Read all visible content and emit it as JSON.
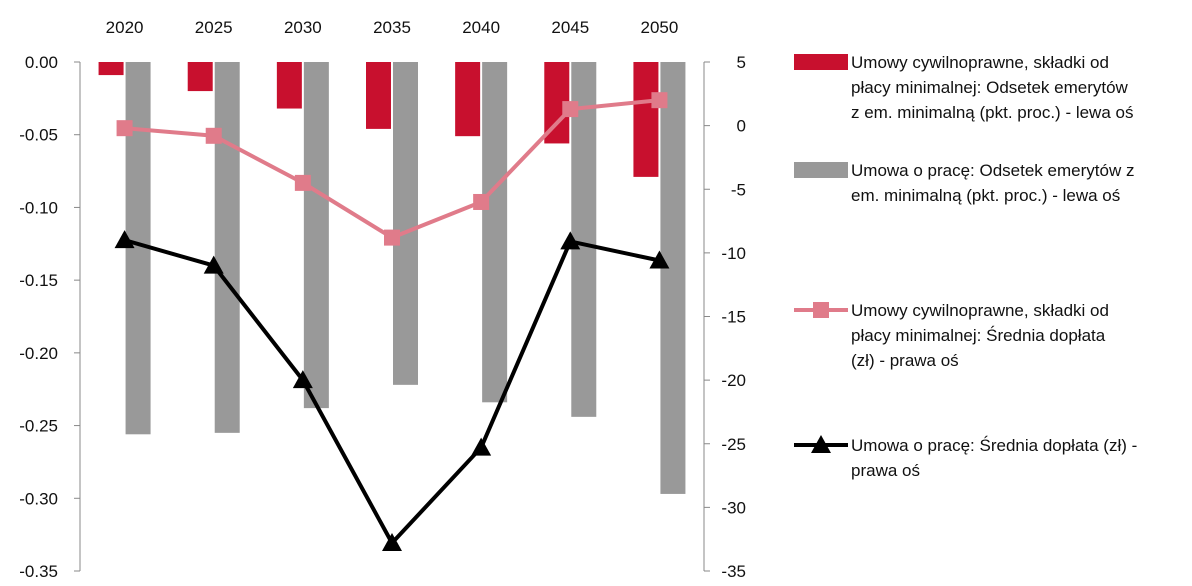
{
  "chart_data": {
    "type": "bar",
    "categories": [
      "2020",
      "2025",
      "2030",
      "2035",
      "2040",
      "2045",
      "2050"
    ],
    "left_axis": {
      "ylim": [
        -0.35,
        0.0
      ],
      "ticks": [
        "0.00",
        "-0.05",
        "-0.10",
        "-0.15",
        "-0.20",
        "-0.25",
        "-0.30",
        "-0.35"
      ],
      "tick_values": [
        0,
        -0.05,
        -0.1,
        -0.15,
        -0.2,
        -0.25,
        -0.3,
        -0.35
      ]
    },
    "right_axis": {
      "ylim": [
        -35,
        5
      ],
      "ticks": [
        "5",
        "0",
        "-5",
        "-10",
        "-15",
        "-20",
        "-25",
        "-30",
        "-35"
      ],
      "tick_values": [
        5,
        0,
        -5,
        -10,
        -15,
        -20,
        -25,
        -30,
        -35
      ]
    },
    "series": [
      {
        "name": "Umowy cywilnoprawne, składki od płacy minimalnej: Odsetek emerytów z em. minimalną (pkt. proc.) - lewa oś",
        "kind": "bar",
        "axis": "left",
        "color": "#c8102e",
        "values": [
          -0.009,
          -0.02,
          -0.032,
          -0.046,
          -0.051,
          -0.056,
          -0.079
        ]
      },
      {
        "name": "Umowa o pracę: Odsetek emerytów z em. minimalną (pkt. proc.) - lewa oś",
        "kind": "bar",
        "axis": "left",
        "color": "#999999",
        "values": [
          -0.256,
          -0.255,
          -0.238,
          -0.222,
          -0.234,
          -0.244,
          -0.297
        ]
      },
      {
        "name": "Umowy cywilnoprawne, składki od płacy minimalnej: Średnia dopłata (zł) - prawa oś",
        "kind": "line",
        "marker": "square",
        "axis": "right",
        "color": "#e07b8a",
        "values": [
          -0.2,
          -0.8,
          -4.5,
          -8.8,
          -6.0,
          1.3,
          2.0
        ]
      },
      {
        "name": "Umowa o pracę: Średnia dopłata (zł) - prawa oś",
        "kind": "line",
        "marker": "triangle",
        "axis": "right",
        "color": "#000000",
        "values": [
          -9.0,
          -11.0,
          -20.0,
          -32.8,
          -25.3,
          -9.1,
          -10.6
        ]
      }
    ],
    "legend": [
      [
        "Umowy cywilnoprawne, składki od",
        "płacy minimalnej: Odsetek emerytów",
        "z em. minimalną (pkt. proc.) - lewa oś"
      ],
      [
        "Umowa o pracę: Odsetek emerytów z",
        "em. minimalną (pkt. proc.) - lewa oś"
      ],
      [
        "Umowy cywilnoprawne, składki od",
        "płacy minimalnej: Średnia dopłata",
        "(zł) - prawa oś"
      ],
      [
        "Umowa o pracę: Średnia dopłata (zł) -",
        "prawa oś"
      ]
    ],
    "legend_position": "right",
    "grid": false
  }
}
